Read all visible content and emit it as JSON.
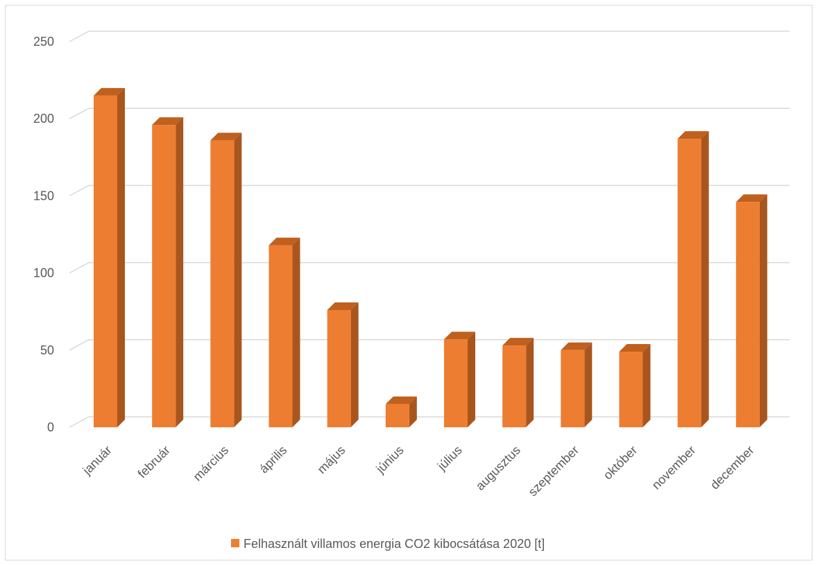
{
  "chart_data": {
    "type": "bar",
    "style": "3d-column",
    "categories": [
      "január",
      "február",
      "március",
      "április",
      "május",
      "június",
      "július",
      "augusztus",
      "szeptember",
      "október",
      "november",
      "december"
    ],
    "series": [
      {
        "name": "Felhasznált villamos energia CO2 kibocsátása 2020 [t]",
        "values": [
          215,
          196,
          186,
          118,
          76,
          15,
          57,
          53,
          50,
          49,
          187,
          146
        ],
        "color": "#ED7D31",
        "side_color": "#A9561E",
        "top_color": "#C0601E"
      }
    ],
    "yticks": [
      0,
      50,
      100,
      150,
      200,
      250
    ],
    "ylim": [
      0,
      250
    ],
    "grid": true,
    "gridline_color": "#d9d9d9",
    "legend_position": "bottom",
    "title": "",
    "xlabel": "",
    "ylabel": ""
  }
}
